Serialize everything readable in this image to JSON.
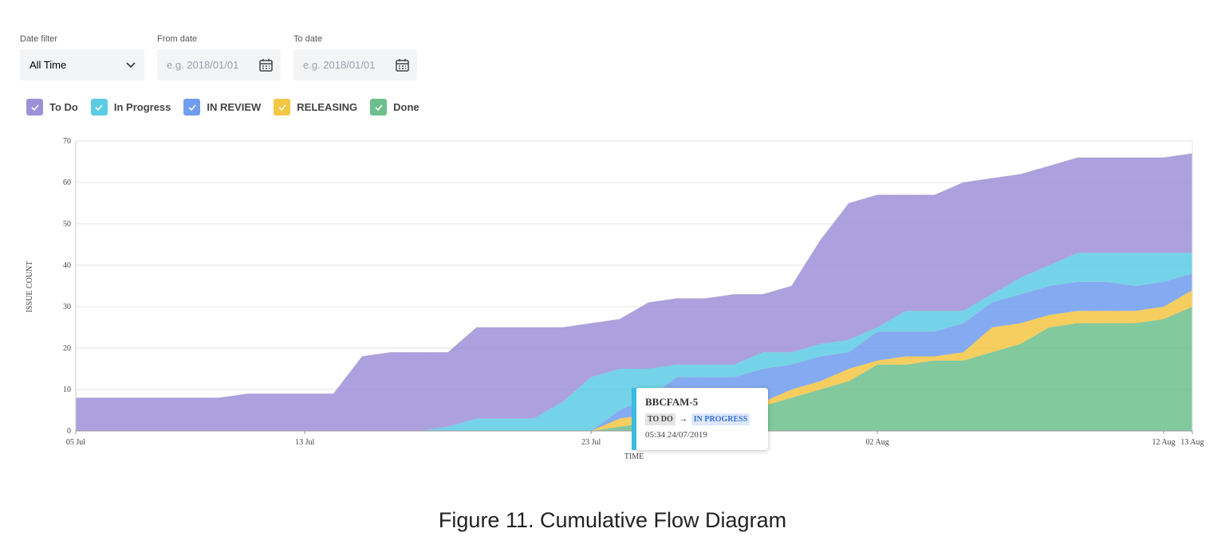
{
  "controls": {
    "date_filter": {
      "label": "Date filter",
      "value": "All Time"
    },
    "from_date": {
      "label": "From date",
      "placeholder": "e.g. 2018/01/01"
    },
    "to_date": {
      "label": "To date",
      "placeholder": "e.g. 2018/01/01"
    }
  },
  "chart_data": {
    "type": "area",
    "stacked": true,
    "x_label": "TIME",
    "y_label": "ISSUE COUNT",
    "grid": true,
    "categories": [
      "05 Jul",
      null,
      null,
      null,
      null,
      null,
      null,
      null,
      "13 Jul",
      null,
      null,
      null,
      null,
      null,
      null,
      null,
      null,
      null,
      "23 Jul",
      null,
      null,
      null,
      null,
      null,
      null,
      null,
      null,
      null,
      "02 Aug",
      null,
      null,
      null,
      null,
      null,
      null,
      null,
      null,
      null,
      "12 Aug",
      "13 Aug"
    ],
    "ylim": [
      0,
      70
    ],
    "yticks": [
      0,
      10,
      20,
      30,
      40,
      50,
      60,
      70
    ],
    "series": [
      {
        "name": "To Do",
        "color": "#9d90d8",
        "values": [
          8,
          8,
          8,
          8,
          8,
          8,
          9,
          9,
          9,
          9,
          18,
          19,
          19,
          18,
          22,
          22,
          22,
          18,
          13,
          12,
          16,
          16,
          16,
          17,
          14,
          16,
          25,
          33,
          32,
          28,
          28,
          31,
          28,
          25,
          24,
          23,
          23,
          23,
          23,
          24
        ]
      },
      {
        "name": "In Progress",
        "color": "#5ccbe4",
        "values": [
          0,
          0,
          0,
          0,
          0,
          0,
          0,
          0,
          0,
          0,
          0,
          0,
          0,
          1,
          3,
          3,
          3,
          7,
          13,
          10,
          7,
          3,
          3,
          3,
          4,
          3,
          3,
          3,
          1,
          5,
          5,
          3,
          2,
          4,
          5,
          7,
          7,
          8,
          7,
          5
        ]
      },
      {
        "name": "IN REVIEW",
        "color": "#6f9cef",
        "values": [
          0,
          0,
          0,
          0,
          0,
          0,
          0,
          0,
          0,
          0,
          0,
          0,
          0,
          0,
          0,
          0,
          0,
          0,
          0,
          2,
          4,
          8,
          8,
          7,
          8,
          6,
          6,
          4,
          7,
          6,
          6,
          7,
          6,
          7,
          7,
          7,
          7,
          6,
          6,
          4
        ]
      },
      {
        "name": "RELEASING",
        "color": "#f3c643",
        "values": [
          0,
          0,
          0,
          0,
          0,
          0,
          0,
          0,
          0,
          0,
          0,
          0,
          0,
          0,
          0,
          0,
          0,
          0,
          0,
          2,
          2,
          2,
          1,
          1,
          1,
          2,
          2,
          3,
          1,
          2,
          1,
          2,
          6,
          5,
          3,
          3,
          3,
          3,
          3,
          4
        ]
      },
      {
        "name": "Done",
        "color": "#6cbf8d",
        "values": [
          0,
          0,
          0,
          0,
          0,
          0,
          0,
          0,
          0,
          0,
          0,
          0,
          0,
          0,
          0,
          0,
          0,
          0,
          0,
          1,
          2,
          3,
          4,
          5,
          6,
          8,
          10,
          12,
          16,
          16,
          17,
          17,
          19,
          21,
          25,
          26,
          26,
          26,
          27,
          30
        ]
      }
    ],
    "tooltip": {
      "title": "BBCFAM-5",
      "from": "TO DO",
      "arrow": "→",
      "to": "IN PROGRESS",
      "time": "05:34 24/07/2019"
    }
  },
  "caption": "Figure 11. Cumulative Flow Diagram"
}
